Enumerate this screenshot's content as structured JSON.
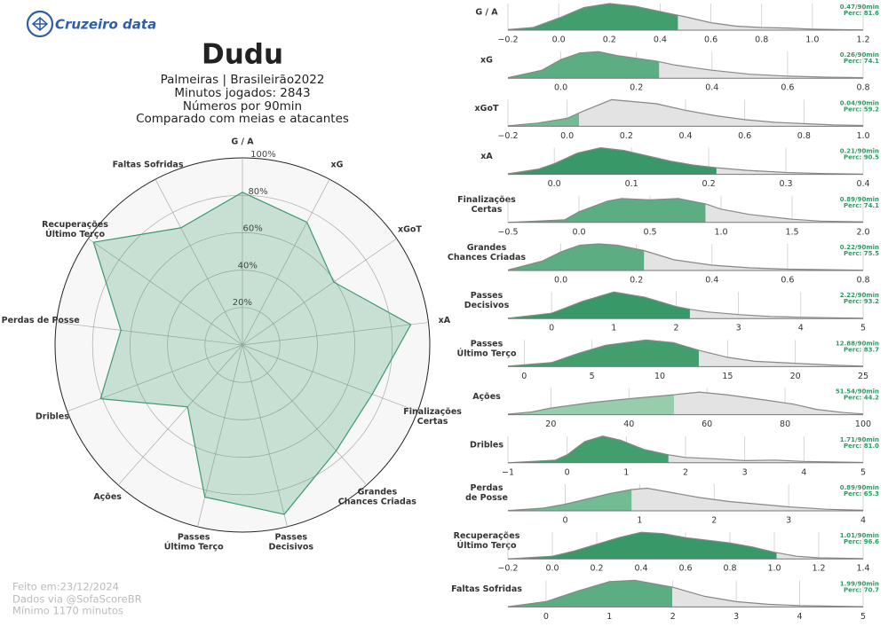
{
  "header": {
    "logo": "Cruzeiro data",
    "title": "Dudu",
    "subtitle": [
      "Palmeiras | Brasileirão2022",
      "Minutos jogados: 2843",
      "Números por 90min",
      "Comparado com meias e atacantes"
    ]
  },
  "footer": [
    "Feito em:23/12/2024",
    "Dados via @SofaScoreBR",
    "Mínimo 1170 minutos"
  ],
  "chart_data": [
    {
      "type": "radar",
      "categories": [
        [
          "G / A"
        ],
        [
          "xG"
        ],
        [
          "xGoT"
        ],
        [
          "xA"
        ],
        [
          "Finalizações",
          "Certas"
        ],
        [
          "Grandes",
          "Chances Criadas"
        ],
        [
          "Passes",
          "Decisivos"
        ],
        [
          "Passes",
          "Último Terço"
        ],
        [
          "Ações"
        ],
        [
          "Dribles"
        ],
        [
          "Perdas de Posse"
        ],
        [
          "Recuperações",
          "Último Terço"
        ],
        [
          "Faltas Sofridas"
        ]
      ],
      "values": [
        81.6,
        74.1,
        59.2,
        90.5,
        74.1,
        75.5,
        93.2,
        83.7,
        44.2,
        81.0,
        65.3,
        96.6,
        70.7
      ],
      "rlim": [
        0,
        100
      ],
      "rticks": [
        {
          "value": 20,
          "label": "20%"
        },
        {
          "value": 40,
          "label": "40%"
        },
        {
          "value": 60,
          "label": "60%"
        },
        {
          "value": 80,
          "label": "80%"
        },
        {
          "value": 100,
          "label": "100%"
        }
      ],
      "color": "#3c9a6c"
    },
    {
      "type": "density",
      "title": [
        "G / A"
      ],
      "xlim": [
        -0.2,
        1.2
      ],
      "xticks": [
        {
          "value": -0.2,
          "label": "−0.2"
        },
        {
          "value": 0,
          "label": "0.0"
        },
        0.2,
        0.4,
        0.6,
        0.8,
        {
          "value": 1,
          "label": "1.0"
        },
        1.2
      ],
      "ylim": [
        0,
        1
      ],
      "x": [
        -0.2,
        -0.1,
        0,
        0.1,
        0.2,
        0.3,
        0.4,
        0.5,
        0.6,
        0.7,
        0.8,
        0.9,
        1.0,
        1.1,
        1.2
      ],
      "density": [
        0.02,
        0.1,
        0.45,
        0.85,
        1,
        0.9,
        0.7,
        0.5,
        0.28,
        0.15,
        0.1,
        0.08,
        0.04,
        0.02,
        0.01
      ],
      "value": 0.47,
      "value_label": "0.47/90min",
      "percentile": 81.6,
      "percentile_label": "Perc: 81.6",
      "color": "#3a9a66"
    },
    {
      "type": "density",
      "title": [
        "xG"
      ],
      "xlim": [
        -0.14,
        0.8
      ],
      "xticks": [
        {
          "value": 0,
          "label": "0.0"
        },
        0.2,
        0.4,
        0.6,
        0.8
      ],
      "ylim": [
        0,
        1
      ],
      "x": [
        -0.14,
        -0.05,
        0,
        0.05,
        0.1,
        0.15,
        0.2,
        0.25,
        0.3,
        0.4,
        0.5,
        0.6,
        0.7,
        0.8
      ],
      "density": [
        0.02,
        0.3,
        0.7,
        0.95,
        1,
        0.85,
        0.75,
        0.65,
        0.5,
        0.3,
        0.15,
        0.08,
        0.04,
        0.02
      ],
      "value": 0.26,
      "value_label": "0.26/90min",
      "percentile": 74.1,
      "percentile_label": "Perc: 74.1",
      "color": "#55aa7c"
    },
    {
      "type": "density",
      "title": [
        "xGoT"
      ],
      "xlim": [
        -0.2,
        1.0
      ],
      "xticks": [
        {
          "value": -0.2,
          "label": "−0.2"
        },
        {
          "value": 0,
          "label": "0.0"
        },
        0.2,
        0.4,
        0.6,
        0.8,
        {
          "value": 1,
          "label": "1.0"
        }
      ],
      "ylim": [
        0,
        1
      ],
      "x": [
        -0.2,
        -0.1,
        0,
        0.05,
        0.15,
        0.3,
        0.4,
        0.5,
        0.6,
        0.7,
        0.8,
        0.9,
        1.0
      ],
      "density": [
        0.02,
        0.12,
        0.3,
        0.55,
        1,
        0.85,
        0.6,
        0.4,
        0.25,
        0.15,
        0.1,
        0.05,
        0.03
      ],
      "value": 0.04,
      "value_label": "0.04/90min",
      "percentile": 59.2,
      "percentile_label": "Perc: 59.2",
      "color": "#6cb88e"
    },
    {
      "type": "density",
      "title": [
        "xA"
      ],
      "xlim": [
        -0.06,
        0.4
      ],
      "xticks": [
        {
          "value": 0,
          "label": "0.0"
        },
        0.1,
        0.2,
        0.3,
        0.4
      ],
      "ylim": [
        0,
        1
      ],
      "x": [
        -0.06,
        -0.02,
        0,
        0.03,
        0.06,
        0.09,
        0.12,
        0.15,
        0.18,
        0.21,
        0.25,
        0.3,
        0.35,
        0.4
      ],
      "density": [
        0.02,
        0.2,
        0.4,
        0.8,
        1,
        0.9,
        0.7,
        0.5,
        0.35,
        0.25,
        0.15,
        0.07,
        0.03,
        0.01
      ],
      "value": 0.21,
      "value_label": "0.21/90min",
      "percentile": 90.5,
      "percentile_label": "Perc: 90.5",
      "color": "#2f9460"
    },
    {
      "type": "density",
      "title": [
        "Finalizações",
        "Certas"
      ],
      "xlim": [
        -0.5,
        2
      ],
      "xticks": [
        {
          "value": -0.5,
          "label": "−0.5"
        },
        {
          "value": 0,
          "label": "0.0"
        },
        0.5,
        {
          "value": 1,
          "label": "1.0"
        },
        1.5,
        {
          "value": 2,
          "label": "2.0"
        }
      ],
      "ylim": [
        0,
        1
      ],
      "x": [
        -0.5,
        -0.1,
        0,
        0.2,
        0.3,
        0.5,
        0.7,
        0.89,
        1.0,
        1.2,
        1.5,
        1.7,
        2.0
      ],
      "density": [
        0,
        0.1,
        0.4,
        0.8,
        0.9,
        0.85,
        0.9,
        0.7,
        0.5,
        0.3,
        0.12,
        0.05,
        0.02
      ],
      "value": 0.89,
      "value_label": "0.89/90min",
      "percentile": 74.1,
      "percentile_label": "Perc: 74.1",
      "color": "#55aa7c"
    },
    {
      "type": "density",
      "title": [
        "Grandes",
        "Chances Criadas"
      ],
      "xlim": [
        -0.14,
        0.8
      ],
      "xticks": [
        {
          "value": 0,
          "label": "0.0"
        },
        0.2,
        0.4,
        0.6,
        0.8
      ],
      "ylim": [
        0,
        1
      ],
      "x": [
        -0.14,
        -0.05,
        0,
        0.05,
        0.1,
        0.15,
        0.22,
        0.3,
        0.4,
        0.5,
        0.6,
        0.8
      ],
      "density": [
        0.02,
        0.35,
        0.7,
        0.95,
        1,
        0.95,
        0.75,
        0.4,
        0.2,
        0.1,
        0.05,
        0.01
      ],
      "value": 0.22,
      "value_label": "0.22/90min",
      "percentile": 75.5,
      "percentile_label": "Perc: 75.5",
      "color": "#55aa7c"
    },
    {
      "type": "density",
      "title": [
        "Passes",
        "Decisivos"
      ],
      "xlim": [
        -0.7,
        5
      ],
      "xticks": [
        0,
        1,
        2,
        3,
        4,
        5
      ],
      "ylim": [
        0,
        1
      ],
      "x": [
        -0.7,
        0,
        0.5,
        1,
        1.5,
        2,
        2.22,
        2.5,
        3,
        3.5,
        4,
        4.5,
        5
      ],
      "density": [
        0.01,
        0.2,
        0.65,
        1,
        0.8,
        0.45,
        0.35,
        0.25,
        0.15,
        0.08,
        0.05,
        0.03,
        0.01
      ],
      "value": 2.22,
      "value_label": "2.22/90min",
      "percentile": 93.2,
      "percentile_label": "Perc: 93.2",
      "color": "#2f9460"
    },
    {
      "type": "density",
      "title": [
        "Passes",
        "Último Terço"
      ],
      "xlim": [
        -1.2,
        25
      ],
      "xticks": [
        0,
        5,
        10,
        15,
        20,
        25
      ],
      "ylim": [
        0,
        1
      ],
      "x": [
        -1.2,
        2,
        4,
        6,
        9,
        11,
        13,
        15,
        17,
        19,
        21,
        23,
        25
      ],
      "density": [
        0.02,
        0.15,
        0.5,
        0.8,
        1,
        0.9,
        0.6,
        0.35,
        0.2,
        0.15,
        0.1,
        0.05,
        0.02
      ],
      "value": 12.88,
      "value_label": "12.88/90min",
      "percentile": 83.7,
      "percentile_label": "Perc: 83.7",
      "color": "#3a9a66"
    },
    {
      "type": "density",
      "title": [
        "Ações"
      ],
      "xlim": [
        9,
        100
      ],
      "xticks": [
        20,
        40,
        60,
        80,
        100
      ],
      "ylim": [
        0,
        1
      ],
      "x": [
        9,
        15,
        20,
        30,
        40,
        51.54,
        58,
        65,
        75,
        82,
        88,
        95,
        100
      ],
      "density": [
        0.02,
        0.1,
        0.25,
        0.45,
        0.6,
        0.75,
        0.85,
        0.75,
        0.55,
        0.4,
        0.2,
        0.08,
        0.03
      ],
      "value": 51.54,
      "value_label": "51.54/90min",
      "percentile": 44.2,
      "percentile_label": "Perc: 44.2",
      "color": "#93cba9"
    },
    {
      "type": "density",
      "title": [
        "Dribles"
      ],
      "xlim": [
        -1,
        5
      ],
      "xticks": [
        {
          "value": -1,
          "label": "−1"
        },
        0,
        1,
        2,
        3,
        4,
        5
      ],
      "ylim": [
        0,
        1
      ],
      "x": [
        -1,
        -0.2,
        0,
        0.3,
        0.6,
        0.9,
        1.3,
        1.71,
        2,
        2.5,
        3,
        3.5,
        4,
        5
      ],
      "density": [
        0,
        0.1,
        0.3,
        0.8,
        1,
        0.85,
        0.5,
        0.3,
        0.2,
        0.15,
        0.08,
        0.1,
        0.05,
        0.01
      ],
      "value": 1.71,
      "value_label": "1.71/90min",
      "percentile": 81.0,
      "percentile_label": "Perc: 81.0",
      "color": "#3a9a66"
    },
    {
      "type": "density",
      "title": [
        "Perdas",
        "de Posse"
      ],
      "xlim": [
        -0.77,
        4
      ],
      "xticks": [
        0,
        1,
        2,
        3,
        4
      ],
      "ylim": [
        0,
        1
      ],
      "x": [
        -0.77,
        -0.3,
        0,
        0.3,
        0.6,
        0.89,
        1.1,
        1.4,
        1.8,
        2.2,
        2.6,
        3,
        3.5,
        4
      ],
      "density": [
        0.01,
        0.1,
        0.25,
        0.45,
        0.65,
        0.8,
        0.85,
        0.7,
        0.5,
        0.35,
        0.25,
        0.15,
        0.06,
        0.02
      ],
      "value": 0.89,
      "value_label": "0.89/90min",
      "percentile": 65.3,
      "percentile_label": "Perc: 65.3",
      "color": "#6cb88e"
    },
    {
      "type": "density",
      "title": [
        "Recuperações",
        "Último Terço"
      ],
      "xlim": [
        -0.2,
        1.4
      ],
      "xticks": [
        {
          "value": -0.2,
          "label": "−0.2"
        },
        {
          "value": 0,
          "label": "0.0"
        },
        0.2,
        0.4,
        0.6,
        0.8,
        {
          "value": 1,
          "label": "1.0"
        },
        1.2,
        1.4
      ],
      "ylim": [
        0,
        1
      ],
      "x": [
        -0.2,
        0,
        0.1,
        0.2,
        0.3,
        0.4,
        0.5,
        0.6,
        0.7,
        0.8,
        0.9,
        1.0,
        1.1,
        1.2,
        1.4
      ],
      "density": [
        0,
        0.1,
        0.3,
        0.55,
        0.8,
        1,
        0.95,
        0.8,
        0.7,
        0.6,
        0.45,
        0.25,
        0.1,
        0.04,
        0.01
      ],
      "value": 1.01,
      "value_label": "1.01/90min",
      "percentile": 96.6,
      "percentile_label": "Perc: 96.6",
      "color": "#2f9460"
    },
    {
      "type": "density",
      "title": [
        "Faltas Sofridas"
      ],
      "xlim": [
        -0.6,
        5
      ],
      "xticks": [
        0,
        1,
        2,
        3,
        4,
        5
      ],
      "ylim": [
        0,
        1
      ],
      "x": [
        -0.6,
        0,
        0.5,
        1,
        1.4,
        1.99,
        2.5,
        3,
        3.5,
        4,
        5
      ],
      "density": [
        0.01,
        0.2,
        0.6,
        0.95,
        1,
        0.75,
        0.4,
        0.2,
        0.1,
        0.05,
        0.01
      ],
      "value": 1.99,
      "value_label": "1.99/90min",
      "percentile": 70.7,
      "percentile_label": "Perc: 70.7",
      "color": "#55aa7c"
    }
  ]
}
